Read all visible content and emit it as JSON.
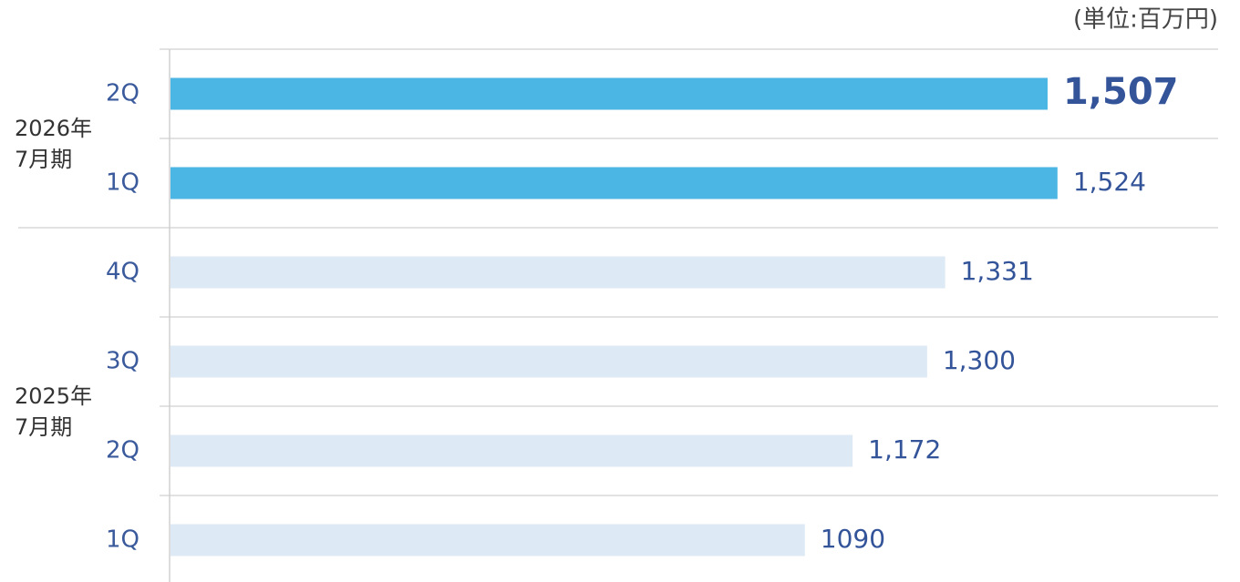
{
  "chart_data": {
    "type": "bar",
    "orientation": "horizontal",
    "unit": "(単位:百万円)",
    "xlim": [
      0,
      1800
    ],
    "groups": [
      {
        "label_lines": [
          "2026年",
          "7月期"
        ],
        "categories": [
          "2Q",
          "1Q"
        ],
        "values": [
          1507,
          1524
        ],
        "value_labels": [
          "1,507",
          "1,524"
        ],
        "color": "#4bb6e3",
        "bold_labels": [
          true,
          false
        ]
      },
      {
        "label_lines": [
          "2025年",
          "7月期"
        ],
        "categories": [
          "4Q",
          "3Q",
          "2Q",
          "1Q"
        ],
        "values": [
          1331,
          1300,
          1172,
          1090
        ],
        "value_labels": [
          "1,331",
          "1,300",
          "1,172",
          "1090"
        ],
        "color": "#dde9f5",
        "bold_labels": [
          false,
          false,
          false,
          false
        ]
      }
    ]
  }
}
